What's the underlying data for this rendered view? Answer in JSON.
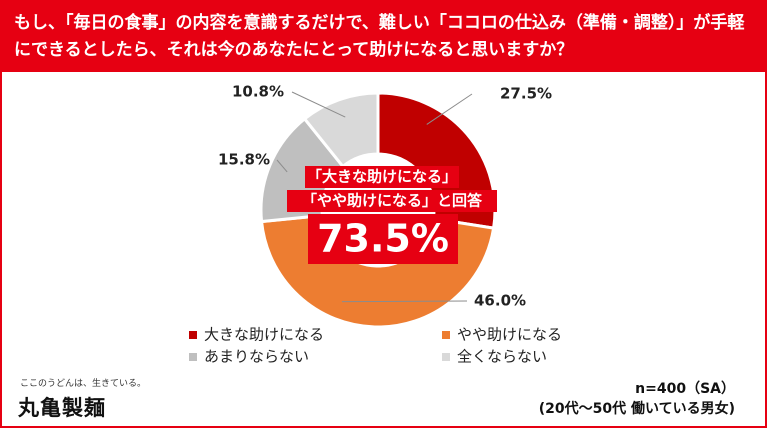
{
  "chart_data": {
    "type": "pie",
    "title": "もし、「毎日の食事」の内容を意識するだけで、難しい「ココロの仕込み（準備・調整）」が手軽にできるとしたら、それは今のあなたにとって助けになると思いますか？",
    "categories": [
      "大きな助けになる",
      "やや助けになる",
      "あまりならない",
      "全くならない"
    ],
    "values": [
      27.5,
      46.0,
      15.8,
      10.8
    ],
    "value_labels": [
      "27.5%",
      "46.0%",
      "15.8%",
      "10.8%"
    ],
    "colors": [
      "#c00000",
      "#ed7d31",
      "#bfbfbf",
      "#d9d9d9"
    ],
    "annotation": {
      "lines": [
        "「大きな助けになる」",
        "「やや助けになる」と回答"
      ],
      "total": "73.5%"
    },
    "notes": [
      "n=400（SA）",
      "(20代～50代 働いている男女)"
    ]
  },
  "brand": {
    "tagline": "ここのうどんは、生きている。",
    "logo": "丸亀製麺"
  }
}
